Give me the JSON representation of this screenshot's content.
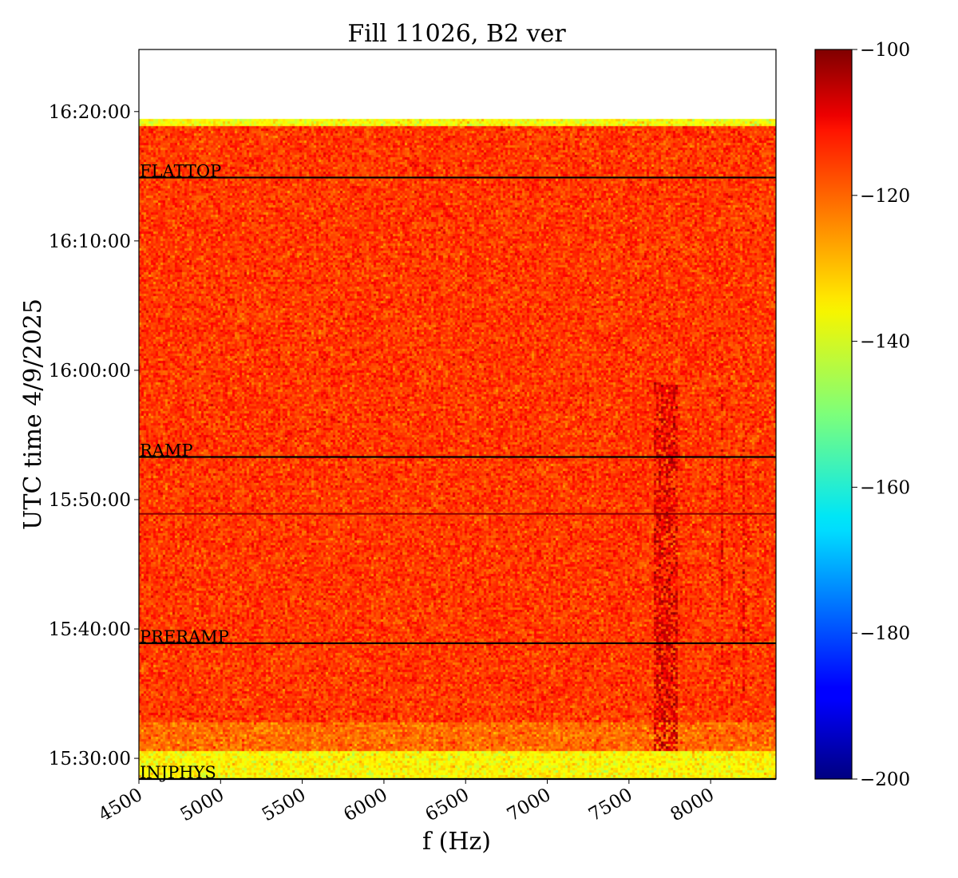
{
  "chart_data": {
    "type": "heatmap",
    "title": "Fill 11026, B2 ver",
    "xlabel": "f (Hz)",
    "ylabel": "UTC time 4/9/2025",
    "xlim": [
      4500,
      8400
    ],
    "x_ticks": [
      4500,
      5000,
      5500,
      6000,
      6500,
      7000,
      7500,
      8000
    ],
    "y_ticks": [
      {
        "label": "16:20:00",
        "minutes": 50
      },
      {
        "label": "16:10:00",
        "minutes": 40
      },
      {
        "label": "16:00:00",
        "minutes": 30
      },
      {
        "label": "15:50:00",
        "minutes": 20
      },
      {
        "label": "15:40:00",
        "minutes": 10
      },
      {
        "label": "15:30:00",
        "minutes": 0
      }
    ],
    "ylim_minutes": [
      -1.6,
      54.8
    ],
    "data_range_minutes": [
      -1.6,
      49.4
    ],
    "colorbar": {
      "colormap": "jet",
      "vmin": -200,
      "vmax": -100,
      "ticks": [
        "-100",
        "-120",
        "-140",
        "-160",
        "-180",
        "-200"
      ]
    },
    "background_level_db": -118,
    "bands": [
      {
        "from_minutes": -1.6,
        "to_minutes": 0.5,
        "level_db": -137
      },
      {
        "from_minutes": 0.5,
        "to_minutes": 2.8,
        "level_db": -123
      },
      {
        "from_minutes": 48.9,
        "to_minutes": 49.4,
        "level_db": -138
      }
    ],
    "phases": [
      {
        "name": "INJPHYS",
        "minutes": -1.6
      },
      {
        "name": "PRERAMP",
        "minutes": 8.9
      },
      {
        "name": "RAMP",
        "minutes": 23.3
      },
      {
        "name": "FLATTOP",
        "minutes": 44.9
      }
    ],
    "unlabeled_lines_minutes": [
      18.9
    ],
    "features": [
      {
        "f_from": 7650,
        "f_to": 7800,
        "t_from_minutes": 0.5,
        "t_to_minutes": 29.0,
        "level_db": -108
      },
      {
        "f_from": 8060,
        "f_to": 8080,
        "t_from_minutes": 6.0,
        "t_to_minutes": 28.0,
        "level_db": -110
      },
      {
        "f_from": 8190,
        "f_to": 8210,
        "t_from_minutes": 5.0,
        "t_to_minutes": 25.0,
        "level_db": -110
      }
    ]
  }
}
